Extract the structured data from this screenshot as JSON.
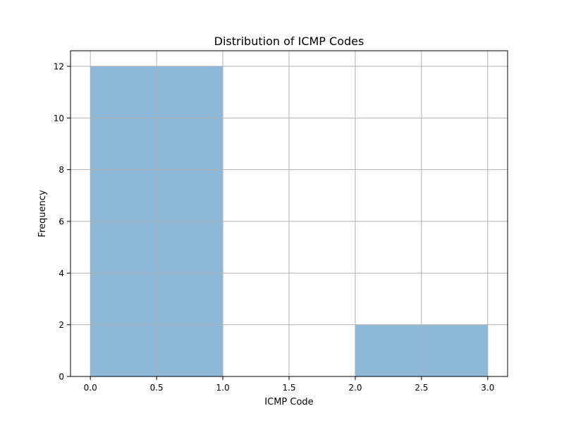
{
  "chart_data": {
    "type": "bar",
    "title": "Distribution of ICMP Codes",
    "xlabel": "ICMP Code",
    "ylabel": "Frequency",
    "bins": [
      {
        "x0": 0.0,
        "x1": 1.0,
        "value": 12
      },
      {
        "x0": 1.0,
        "x1": 2.0,
        "value": 0
      },
      {
        "x0": 2.0,
        "x1": 3.0,
        "value": 2
      }
    ],
    "xlim": [
      -0.15,
      3.15
    ],
    "ylim": [
      0,
      12.6
    ],
    "xticks": [
      "0.0",
      "0.5",
      "1.0",
      "1.5",
      "2.0",
      "2.5",
      "3.0"
    ],
    "xtick_values": [
      0,
      0.5,
      1,
      1.5,
      2,
      2.5,
      3
    ],
    "yticks": [
      "0",
      "2",
      "4",
      "6",
      "8",
      "10",
      "12"
    ],
    "ytick_values": [
      0,
      2,
      4,
      6,
      8,
      10,
      12
    ],
    "grid": true,
    "bar_color": "#8db8d8"
  }
}
